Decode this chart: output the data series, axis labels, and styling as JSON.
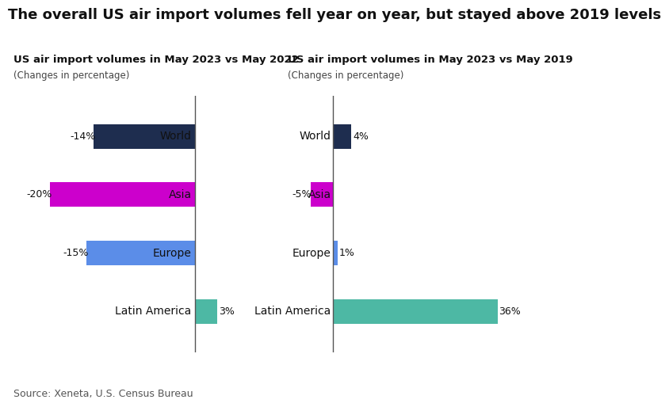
{
  "title": "The overall US air import volumes fell year on year, but stayed above 2019 levels",
  "chart1_title": "US air import volumes in May 2023 vs May 2022",
  "chart1_subtitle": "(Changes in percentage)",
  "chart2_title": "US air import volumes in May 2023 vs May 2019",
  "chart2_subtitle": "(Changes in percentage)",
  "categories": [
    "World",
    "Asia",
    "Europe",
    "Latin America"
  ],
  "chart1_values": [
    -14,
    -20,
    -15,
    3
  ],
  "chart2_values": [
    4,
    -5,
    1,
    36
  ],
  "chart1_colors": [
    "#1e2d4f",
    "#cc00cc",
    "#5b8de8",
    "#4db8a4"
  ],
  "chart2_colors": [
    "#1e2d4f",
    "#cc00cc",
    "#5b8de8",
    "#4db8a4"
  ],
  "chart1_labels": [
    "-14%",
    "-20%",
    "-15%",
    "3%"
  ],
  "chart2_labels": [
    "4%",
    "-5%",
    "1%",
    "36%"
  ],
  "source": "Source: Xeneta, U.S. Census Bureau",
  "bg_color": "#ffffff",
  "title_fontsize": 13,
  "label_fontsize": 9,
  "cat_fontsize": 10,
  "source_fontsize": 9,
  "chart1_xlim": [
    -25,
    8
  ],
  "chart2_xlim": [
    -10,
    45
  ]
}
